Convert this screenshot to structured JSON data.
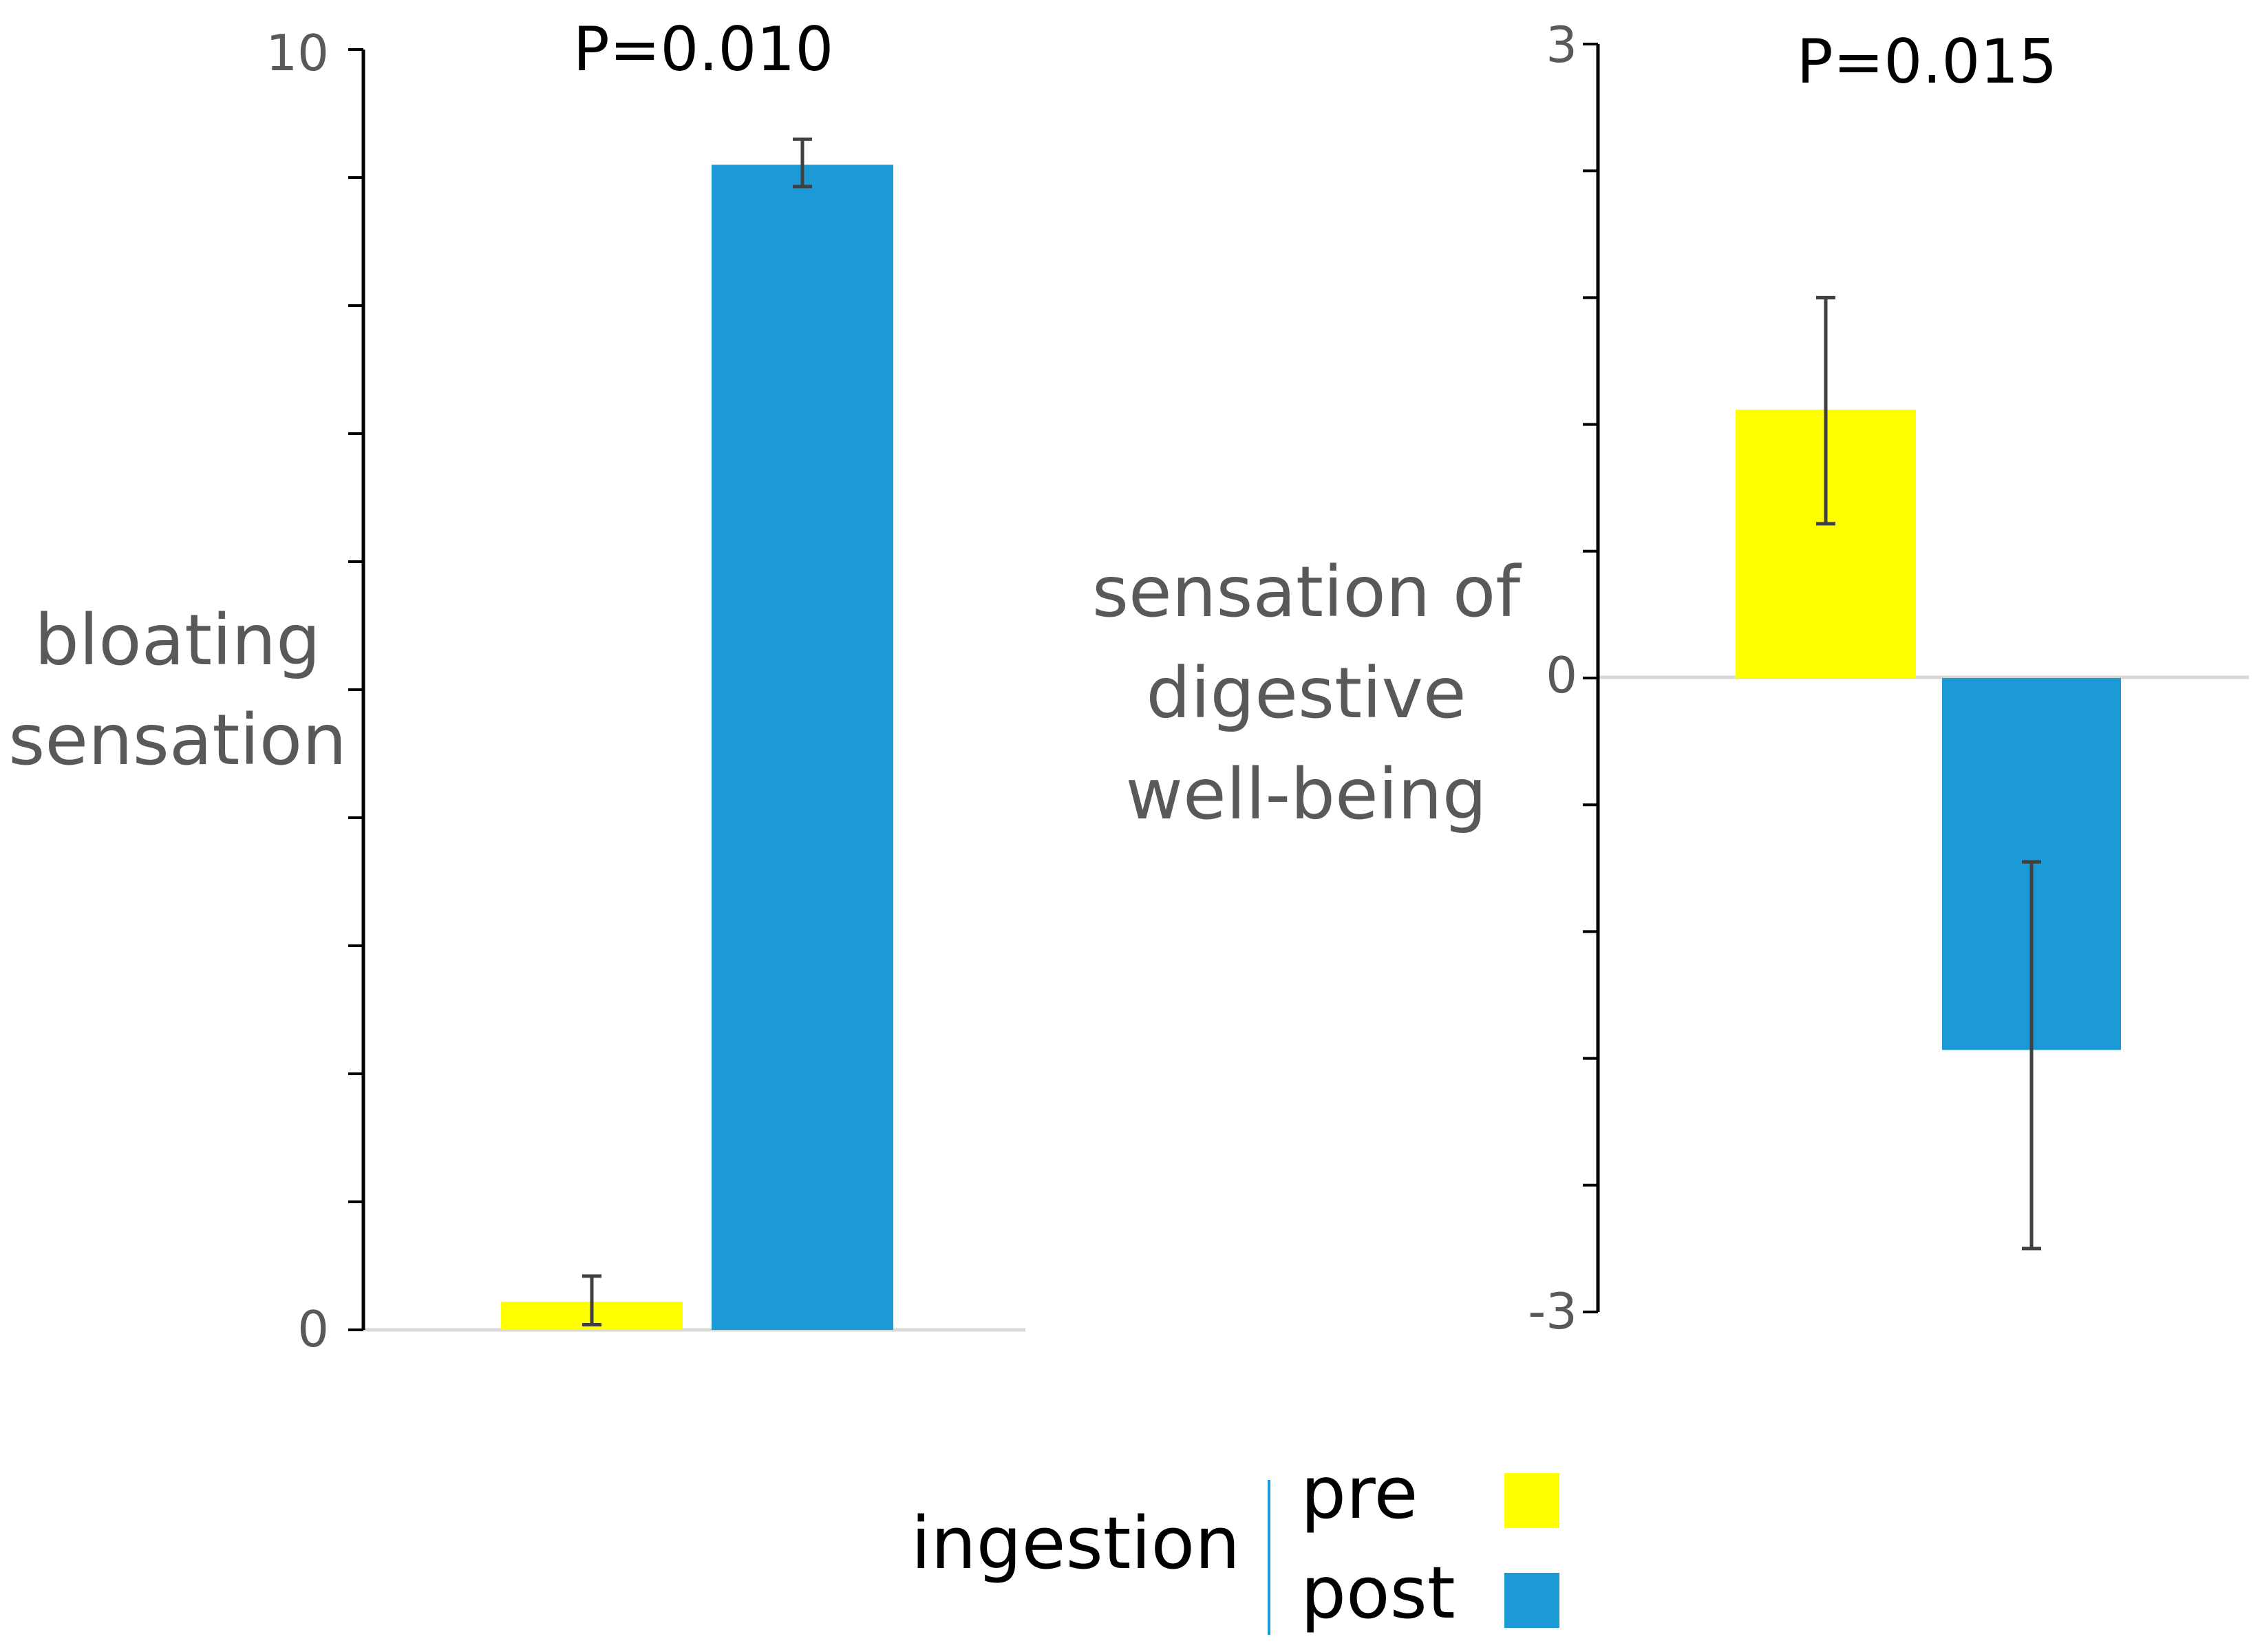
{
  "colors": {
    "pre": "#FFFF00",
    "post": "#1B9AD6",
    "axis": "#000000",
    "baseline": "#D9D9D9",
    "error": "#404040"
  },
  "chart_data": [
    {
      "type": "bar",
      "ylabel_lines": [
        "bloating",
        "sensation"
      ],
      "tick_labels": {
        "top": "10",
        "bottom": "0"
      },
      "p_value": "P=0.010",
      "ylim": [
        0,
        10
      ],
      "minor_ticks": 10,
      "series": [
        {
          "name": "pre",
          "value": 0.22,
          "err_low": 0.04,
          "err_high": 0.42
        },
        {
          "name": "post",
          "value": 9.1,
          "err_low": 8.93,
          "err_high": 9.3
        }
      ]
    },
    {
      "type": "bar",
      "ylabel_lines": [
        "sensation of",
        "digestive",
        "well-being"
      ],
      "tick_labels": {
        "top": "3",
        "middle": "0",
        "bottom": "-3"
      },
      "p_value": "P=0.015",
      "ylim": [
        -3,
        3
      ],
      "minor_ticks": 10,
      "series": [
        {
          "name": "pre",
          "value": 1.27,
          "err_low": 0.73,
          "err_high": 1.8
        },
        {
          "name": "post",
          "value": -1.76,
          "err_low": -2.7,
          "err_high": -0.87
        }
      ]
    }
  ],
  "legend": {
    "title": "ingestion",
    "items": [
      {
        "label": "pre",
        "series": "pre"
      },
      {
        "label": "post",
        "series": "post"
      }
    ]
  }
}
